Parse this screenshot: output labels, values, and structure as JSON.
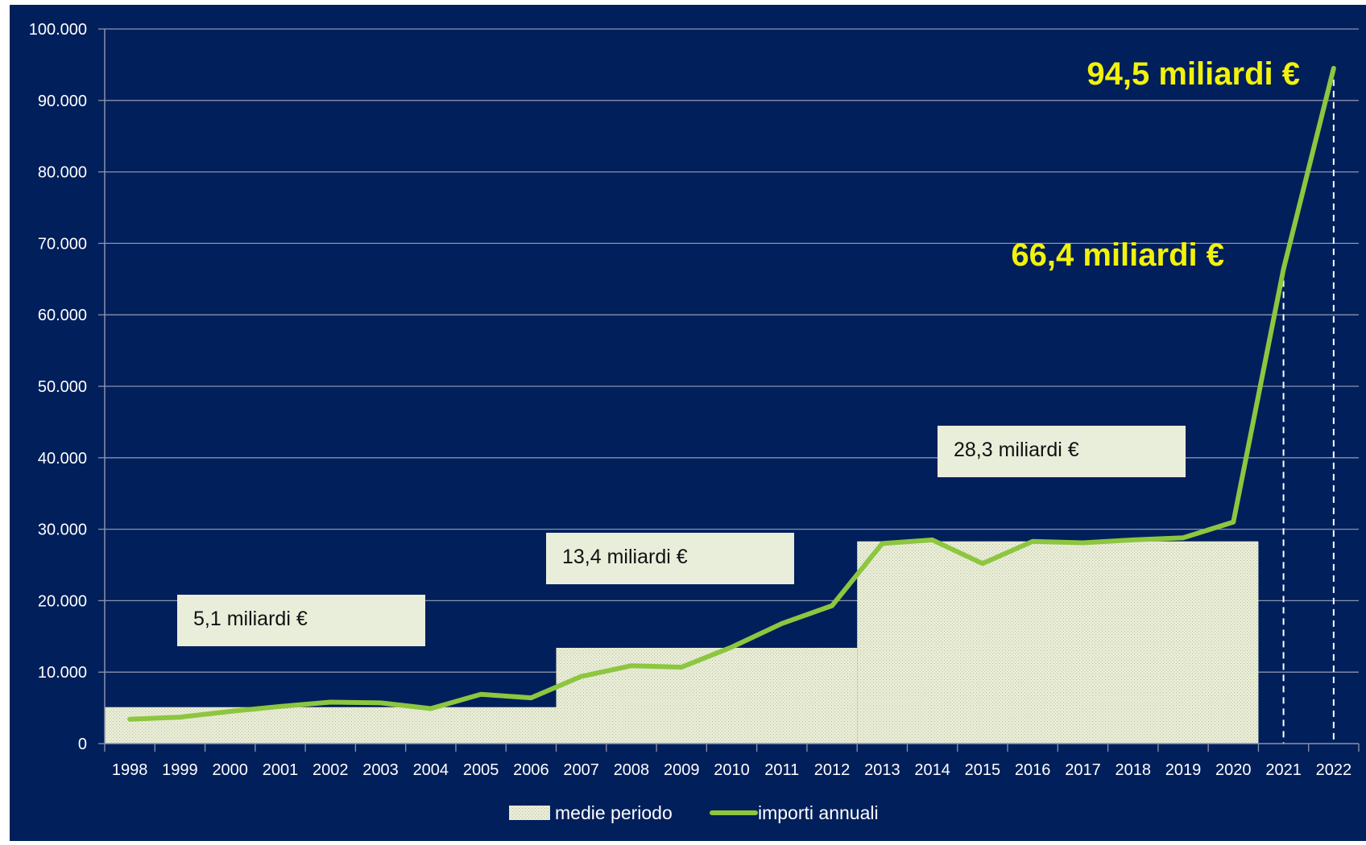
{
  "colors": {
    "background": "#001f5b",
    "plot_background": "#001f5b",
    "gridline": "#8a93ad",
    "axis_text": "#ffffff",
    "line": "#8dc63f",
    "area_fill": "#e8ecd6",
    "annotation_box": "#e9eedb",
    "annotation_text": "#111111",
    "highlight_text": "#f2f20a"
  },
  "chart_data": {
    "type": "line",
    "categories": [
      "1998",
      "1999",
      "2000",
      "2001",
      "2002",
      "2003",
      "2004",
      "2005",
      "2006",
      "2007",
      "2008",
      "2009",
      "2010",
      "2011",
      "2012",
      "2013",
      "2014",
      "2015",
      "2016",
      "2017",
      "2018",
      "2019",
      "2020",
      "2021",
      "2022"
    ],
    "ylim": [
      0,
      100000
    ],
    "yticks": [
      0,
      10000,
      20000,
      30000,
      40000,
      50000,
      60000,
      70000,
      80000,
      90000,
      100000
    ],
    "ytick_labels": [
      "0",
      "10.000",
      "20.000",
      "30.000",
      "40.000",
      "50.000",
      "60.000",
      "70.000",
      "80.000",
      "90.000",
      "100.000"
    ],
    "grid": true,
    "legend_position": "bottom",
    "series": [
      {
        "name": "medie periodo",
        "type": "area",
        "segments": [
          {
            "from": "1998",
            "to": "2006",
            "value": 5100
          },
          {
            "from": "2007",
            "to": "2012",
            "value": 13400
          },
          {
            "from": "2013",
            "to": "2020",
            "value": 28300
          }
        ]
      },
      {
        "name": "importi annuali",
        "type": "line",
        "values": [
          3400,
          3700,
          4500,
          5200,
          5800,
          5700,
          4900,
          6900,
          6400,
          9400,
          10900,
          10700,
          13500,
          16800,
          19300,
          28000,
          28500,
          25200,
          28300,
          28100,
          28500,
          28800,
          31000,
          66400,
          94500
        ]
      }
    ],
    "annotations": [
      {
        "text": "5,1 miliardi €",
        "style": "box"
      },
      {
        "text": "13,4 miliardi €",
        "style": "box"
      },
      {
        "text": "28,3 miliardi €",
        "style": "box"
      },
      {
        "text": "66,4 miliardi €",
        "style": "highlight",
        "year": "2021"
      },
      {
        "text": "94,5 miliardi €",
        "style": "highlight",
        "year": "2022"
      }
    ]
  }
}
